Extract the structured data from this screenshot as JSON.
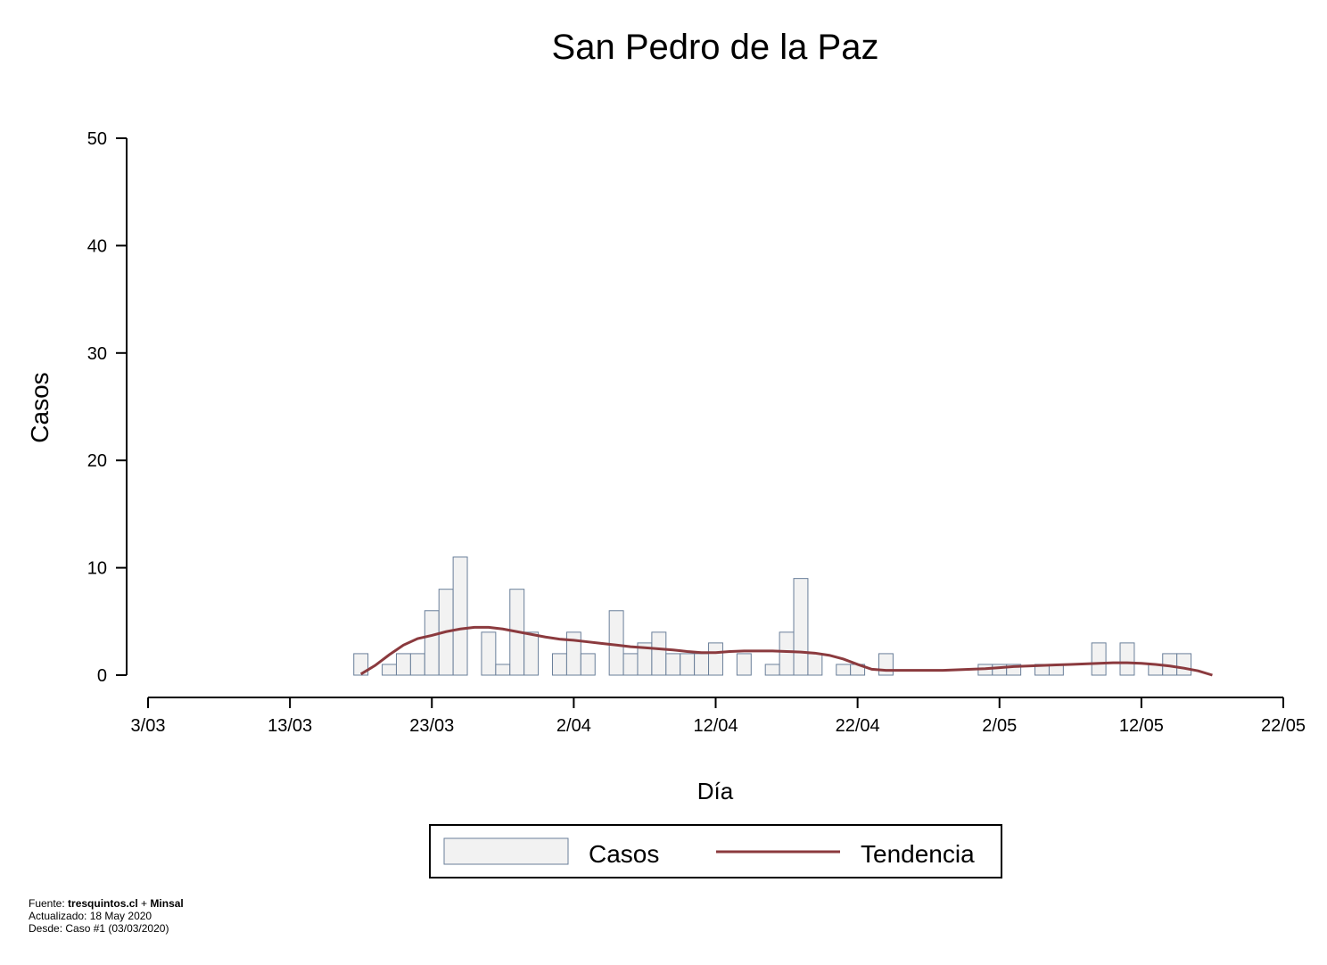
{
  "chart_data": {
    "type": "bar",
    "title": "San Pedro de la Paz",
    "xlabel": "Día",
    "ylabel": "Casos",
    "ylim": [
      0,
      50
    ],
    "yticks": [
      "0",
      "10",
      "20",
      "30",
      "40",
      "50"
    ],
    "xlim": [
      "2020-03-03",
      "2020-05-22"
    ],
    "xticks": [
      "3/03",
      "13/03",
      "23/03",
      "2/04",
      "12/04",
      "22/04",
      "2/05",
      "12/05",
      "22/05"
    ],
    "x_dates": [
      "2020-03-18",
      "2020-03-19",
      "2020-03-20",
      "2020-03-21",
      "2020-03-22",
      "2020-03-23",
      "2020-03-24",
      "2020-03-25",
      "2020-03-26",
      "2020-03-27",
      "2020-03-28",
      "2020-03-29",
      "2020-03-30",
      "2020-03-31",
      "2020-04-01",
      "2020-04-02",
      "2020-04-03",
      "2020-04-04",
      "2020-04-05",
      "2020-04-06",
      "2020-04-07",
      "2020-04-08",
      "2020-04-09",
      "2020-04-10",
      "2020-04-11",
      "2020-04-12",
      "2020-04-13",
      "2020-04-14",
      "2020-04-15",
      "2020-04-16",
      "2020-04-17",
      "2020-04-18",
      "2020-04-19",
      "2020-04-20",
      "2020-04-21",
      "2020-04-22",
      "2020-04-23",
      "2020-04-24",
      "2020-04-25",
      "2020-04-26",
      "2020-04-27",
      "2020-04-28",
      "2020-04-29",
      "2020-04-30",
      "2020-05-01",
      "2020-05-02",
      "2020-05-03",
      "2020-05-04",
      "2020-05-05",
      "2020-05-06",
      "2020-05-07",
      "2020-05-08",
      "2020-05-09",
      "2020-05-10",
      "2020-05-11",
      "2020-05-12",
      "2020-05-13",
      "2020-05-14",
      "2020-05-15",
      "2020-05-16",
      "2020-05-17",
      "2020-05-18"
    ],
    "series": [
      {
        "name": "Casos",
        "color": "#f2f2f2",
        "edge_color": "#6a7f9a",
        "values": [
          2,
          0,
          1,
          2,
          2,
          6,
          8,
          11,
          0,
          4,
          1,
          8,
          4,
          0,
          2,
          4,
          2,
          0,
          6,
          2,
          3,
          4,
          2,
          2,
          2,
          3,
          0,
          2,
          0,
          1,
          4,
          9,
          2,
          0,
          1,
          1,
          0,
          2,
          0,
          0,
          0,
          0,
          0,
          0,
          1,
          1,
          1,
          0,
          1,
          1,
          0,
          0,
          3,
          0,
          3,
          0,
          1,
          2,
          2,
          0,
          0,
          0
        ]
      },
      {
        "name": "Tendencia",
        "color": "#8b3a3e",
        "values": [
          0.1,
          0.9,
          1.9,
          2.8,
          3.4,
          3.7,
          4.05,
          4.3,
          4.45,
          4.45,
          4.3,
          4.05,
          3.8,
          3.55,
          3.35,
          3.25,
          3.1,
          2.95,
          2.8,
          2.65,
          2.55,
          2.45,
          2.35,
          2.2,
          2.1,
          2.1,
          2.2,
          2.25,
          2.25,
          2.25,
          2.2,
          2.15,
          2.05,
          1.85,
          1.5,
          1.0,
          0.55,
          0.45,
          0.45,
          0.45,
          0.45,
          0.45,
          0.5,
          0.55,
          0.6,
          0.7,
          0.8,
          0.85,
          0.9,
          0.95,
          1.0,
          1.05,
          1.1,
          1.15,
          1.15,
          1.1,
          1.0,
          0.85,
          0.65,
          0.4,
          0.0,
          null
        ]
      }
    ],
    "legend_position": "bottom-center",
    "grid": false
  },
  "footer": {
    "source_prefix": "Fuente: ",
    "source_a": "tresquintos.cl",
    "source_plus": " + ",
    "source_b": "Minsal",
    "updated": "Actualizado: 18 May 2020",
    "since": "Desde: Caso #1  (03/03/2020)"
  }
}
